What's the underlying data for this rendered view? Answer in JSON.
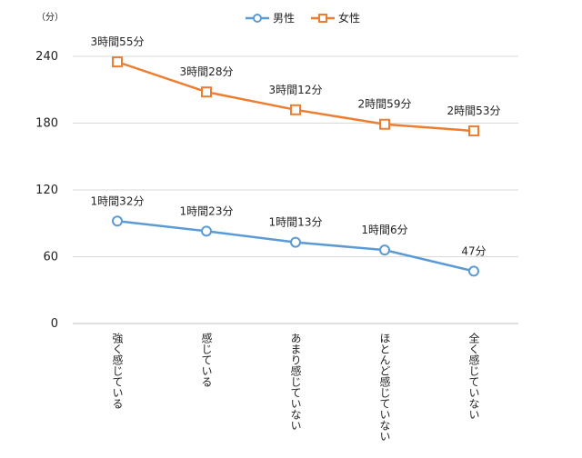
{
  "chart_data": {
    "type": "line",
    "unit": "（分）",
    "categories": [
      "強く感じている",
      "感じている",
      "あまり感じていない",
      "ほとんど感じていない",
      "全く感じていない"
    ],
    "ylim": [
      0,
      240
    ],
    "yticks": [
      0,
      60,
      120,
      180,
      240
    ],
    "grid": true,
    "legend": "top-center",
    "series": [
      {
        "name": "男性",
        "color": "#5b9bd5",
        "marker": "circle",
        "values": [
          92,
          83,
          73,
          66,
          47
        ],
        "labels": [
          "1時間32分",
          "1時間23分",
          "1時間13分",
          "1時間6分",
          "47分"
        ]
      },
      {
        "name": "女性",
        "color": "#ed7d31",
        "marker": "square",
        "values": [
          235,
          208,
          192,
          179,
          173
        ],
        "labels": [
          "3時間55分",
          "3時間28分",
          "3時間12分",
          "2時間59分",
          "2時間53分"
        ]
      }
    ]
  }
}
